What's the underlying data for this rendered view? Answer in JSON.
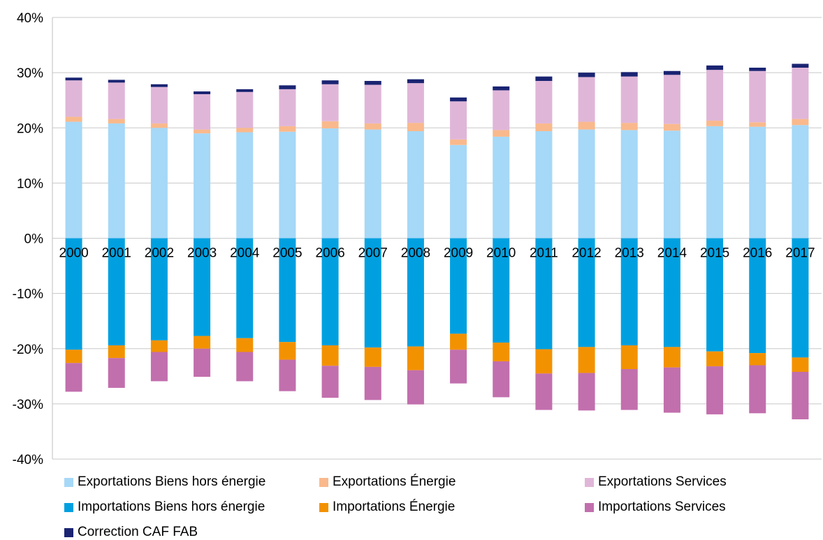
{
  "chart_data": {
    "type": "bar",
    "stacked": true,
    "categories": [
      "2000",
      "2001",
      "2002",
      "2003",
      "2004",
      "2005",
      "2006",
      "2007",
      "2008",
      "2009",
      "2010",
      "2011",
      "2012",
      "2013",
      "2014",
      "2015",
      "2016",
      "2017"
    ],
    "ylim": [
      -40,
      40
    ],
    "yticks": [
      "-40%",
      "-30%",
      "-20%",
      "-10%",
      "0%",
      "10%",
      "20%",
      "30%",
      "40%"
    ],
    "ytick_values": [
      -40,
      -30,
      -20,
      -10,
      0,
      10,
      20,
      30,
      40
    ],
    "grid": true,
    "legend_position": "bottom",
    "series": [
      {
        "name": "Exportations Biens hors énergie",
        "color": "#a6d8f7",
        "values": [
          21.1,
          20.8,
          20.0,
          19.0,
          19.2,
          19.3,
          19.9,
          19.7,
          19.4,
          16.9,
          18.4,
          19.4,
          19.7,
          19.6,
          19.5,
          20.3,
          20.2,
          20.5
        ]
      },
      {
        "name": "Exportations Énergie",
        "color": "#f9b98c",
        "values": [
          0.9,
          0.8,
          0.8,
          0.7,
          0.8,
          1.0,
          1.3,
          1.1,
          1.5,
          1.0,
          1.2,
          1.4,
          1.4,
          1.3,
          1.2,
          1.0,
          0.8,
          1.1
        ]
      },
      {
        "name": "Exportations Services",
        "color": "#e0b6d8",
        "values": [
          6.6,
          6.6,
          6.6,
          6.4,
          6.5,
          6.7,
          6.7,
          7.0,
          7.2,
          6.9,
          7.2,
          7.7,
          8.1,
          8.4,
          8.9,
          9.2,
          9.3,
          9.3
        ]
      },
      {
        "name": "Correction CAF FAB",
        "color": "#1a2472",
        "values": [
          0.5,
          0.5,
          0.5,
          0.5,
          0.5,
          0.7,
          0.7,
          0.7,
          0.7,
          0.7,
          0.7,
          0.8,
          0.8,
          0.8,
          0.7,
          0.8,
          0.6,
          0.7
        ]
      },
      {
        "name": "Importations Biens hors énergie",
        "color": "#00a0e0",
        "values": [
          -20.2,
          -19.4,
          -18.5,
          -17.7,
          -18.1,
          -18.8,
          -19.4,
          -19.8,
          -19.6,
          -17.3,
          -18.9,
          -20.1,
          -19.7,
          -19.4,
          -19.7,
          -20.5,
          -20.8,
          -21.6
        ]
      },
      {
        "name": "Importations Énergie",
        "color": "#f39200",
        "values": [
          -2.4,
          -2.3,
          -2.1,
          -2.3,
          -2.5,
          -3.2,
          -3.7,
          -3.5,
          -4.3,
          -2.9,
          -3.4,
          -4.4,
          -4.7,
          -4.3,
          -3.7,
          -2.7,
          -2.2,
          -2.6
        ]
      },
      {
        "name": "Importations Services",
        "color": "#c26fad",
        "values": [
          -5.2,
          -5.4,
          -5.3,
          -5.1,
          -5.3,
          -5.7,
          -5.8,
          -6.0,
          -6.2,
          -6.1,
          -6.5,
          -6.6,
          -6.8,
          -7.4,
          -8.2,
          -8.7,
          -8.7,
          -8.6
        ]
      }
    ],
    "legend_order": [
      "Exportations Biens hors énergie",
      "Exportations Énergie",
      "Exportations Services",
      "Importations Biens hors énergie",
      "Importations Énergie",
      "Importations Services",
      "Correction CAF FAB"
    ]
  }
}
